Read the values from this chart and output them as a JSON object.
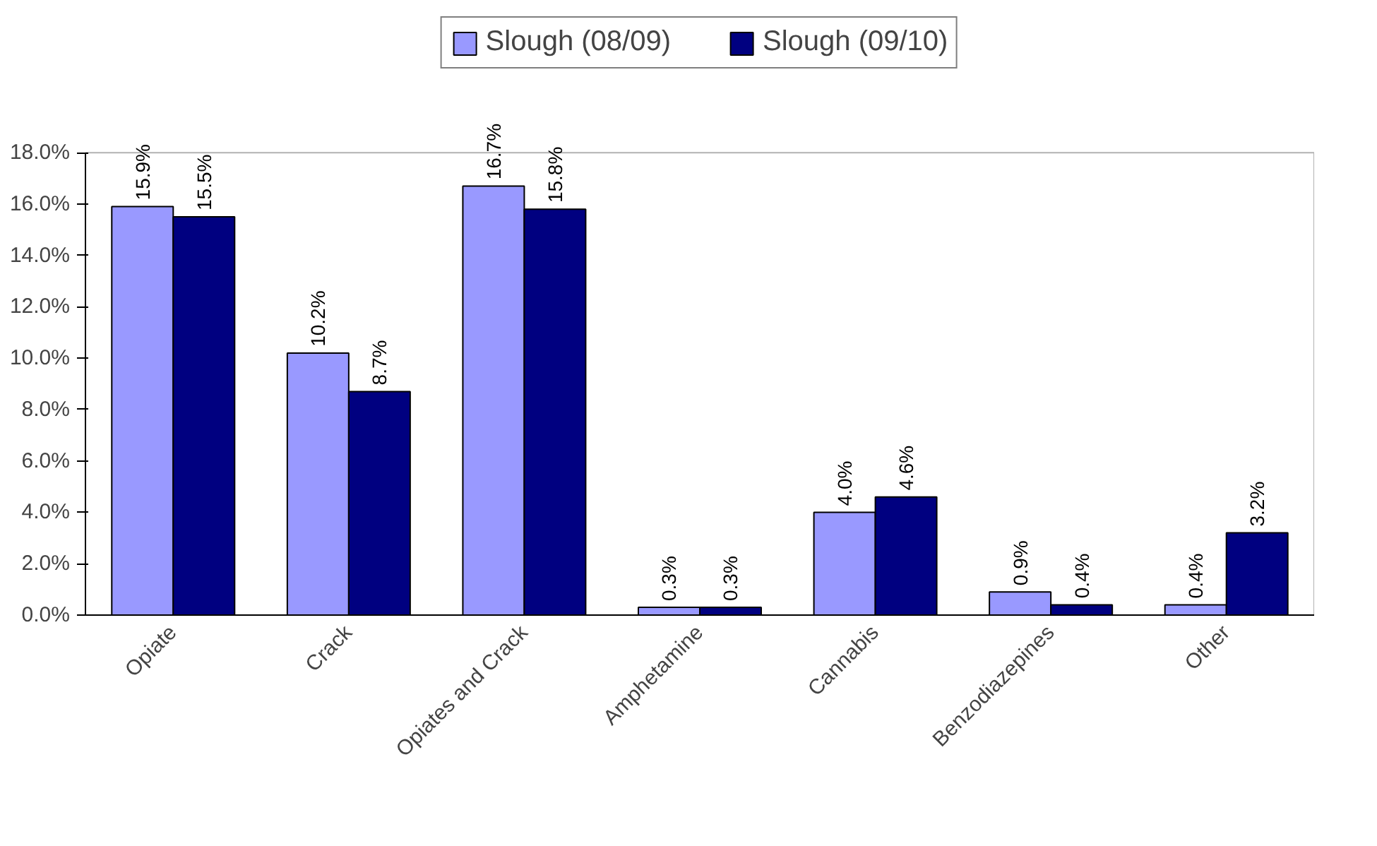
{
  "chart_data": {
    "type": "bar",
    "categories": [
      "Opiate",
      "Crack",
      "Opiates and Crack",
      "Amphetamine",
      "Cannabis",
      "Benzodiazepines",
      "Other"
    ],
    "series": [
      {
        "name": "Slough (08/09)",
        "color": "#9999ff",
        "values": [
          15.9,
          10.2,
          16.7,
          0.3,
          4.0,
          0.9,
          0.4
        ],
        "value_labels": [
          "15.9%",
          "10.2%",
          "16.7%",
          "0.3%",
          "4.0%",
          "0.9%",
          "0.4%"
        ]
      },
      {
        "name": "Slough (09/10)",
        "color": "#000080",
        "values": [
          15.5,
          8.7,
          15.8,
          0.3,
          4.6,
          0.4,
          3.2
        ],
        "value_labels": [
          "15.5%",
          "8.7%",
          "15.8%",
          "0.3%",
          "4.6%",
          "0.4%",
          "3.2%"
        ]
      }
    ],
    "ylim": [
      0,
      18
    ],
    "yticks": [
      {
        "value": 0,
        "label": "0.0%"
      },
      {
        "value": 2,
        "label": "2.0%"
      },
      {
        "value": 4,
        "label": "4.0%"
      },
      {
        "value": 6,
        "label": "6.0%"
      },
      {
        "value": 8,
        "label": "8.0%"
      },
      {
        "value": 10,
        "label": "10.0%"
      },
      {
        "value": 12,
        "label": "12.0%"
      },
      {
        "value": 14,
        "label": "14.0%"
      },
      {
        "value": 16,
        "label": "16.0%"
      },
      {
        "value": 18,
        "label": "18.0%"
      }
    ],
    "grid": false,
    "legend": "top"
  }
}
